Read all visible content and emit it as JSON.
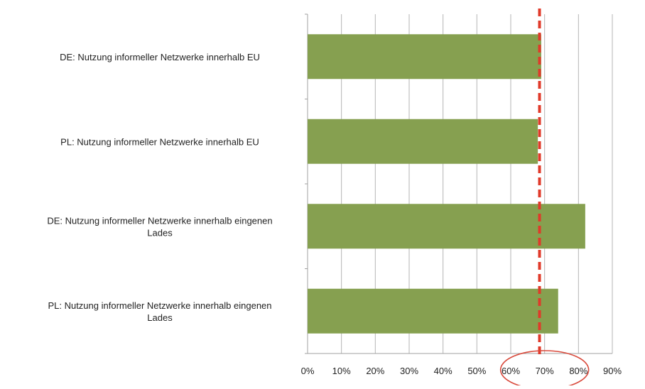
{
  "chart_data": {
    "type": "bar",
    "orientation": "horizontal",
    "categories": [
      [
        "DE: Nutzung informeller Netzwerke innerhalb EU"
      ],
      [
        "PL: Nutzung informeller Netzwerke innerhalb EU"
      ],
      [
        "DE: Nutzung informeller Netzwerke innerhalb eingenen",
        "Lades"
      ],
      [
        "PL: Nutzung informeller Netzwerke innerhalb eingenen",
        "Lades"
      ]
    ],
    "values": [
      0.69,
      0.68,
      0.82,
      0.74
    ],
    "xlim": [
      0,
      0.9
    ],
    "xticks": [
      0,
      0.1,
      0.2,
      0.3,
      0.4,
      0.5,
      0.6,
      0.7,
      0.8,
      0.9
    ],
    "xtick_labels": [
      "0%",
      "10%",
      "20%",
      "30%",
      "40%",
      "50%",
      "60%",
      "70%",
      "80%",
      "90%"
    ],
    "reference_line": {
      "value": 0.685,
      "style": "dashed",
      "color": "#e03a2a"
    },
    "annotation": {
      "type": "ellipse",
      "around_ticks": [
        "60%",
        "70%",
        "80%"
      ],
      "color": "#d9493b"
    },
    "bar_color": "#86a050",
    "grid": true,
    "xlabel": "",
    "ylabel": "",
    "title": ""
  }
}
